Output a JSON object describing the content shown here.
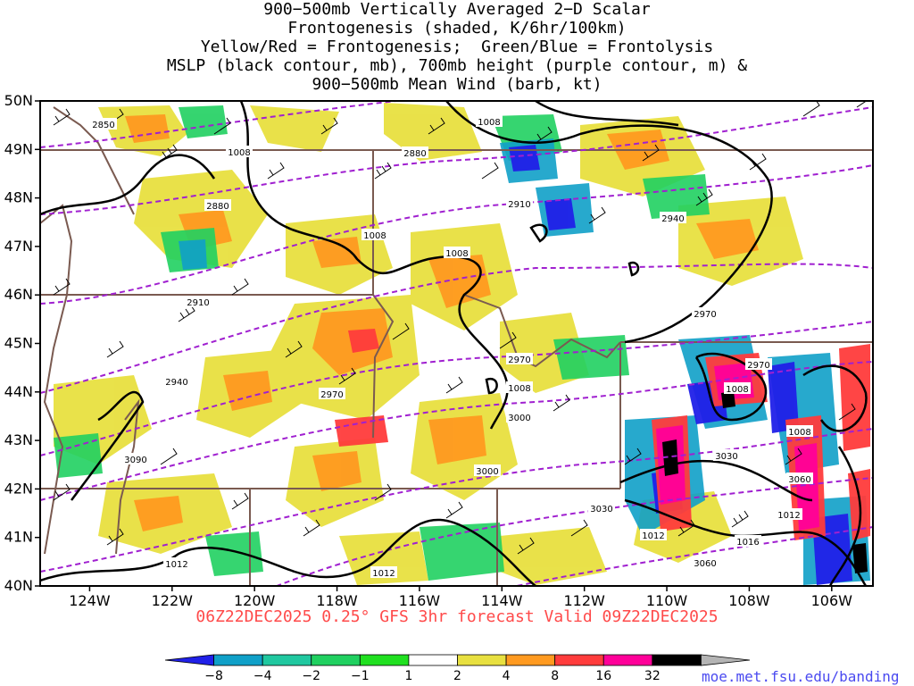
{
  "title": {
    "lines": [
      "900−500mb Vertically Averaged 2−D Scalar",
      "Frontogenesis (shaded, K/6hr/100km)",
      "Yellow/Red = Frontogenesis;  Green/Blue = Frontolysis",
      "MSLP (black contour, mb), 700mb height (purple contour, m) &",
      "900−500mb Mean Wind (barb, kt)"
    ]
  },
  "map": {
    "lon_ticks": [
      "124W",
      "122W",
      "120W",
      "118W",
      "116W",
      "114W",
      "112W",
      "110W",
      "108W",
      "106W"
    ],
    "lat_ticks": [
      "50N",
      "49N",
      "48N",
      "47N",
      "46N",
      "45N",
      "44N",
      "43N",
      "42N",
      "41N",
      "40N"
    ],
    "lon_range": [
      -125.2,
      -105.0
    ],
    "lat_range": [
      40,
      50
    ],
    "contour_labels": {
      "mslp": [
        "1008",
        "1008",
        "1008",
        "1008",
        "1008",
        "1008",
        "1008",
        "1012",
        "1012",
        "1012",
        "1012",
        "1016"
      ],
      "height700": [
        "2850",
        "2880",
        "2880",
        "2910",
        "2910",
        "2940",
        "2940",
        "2970",
        "2970",
        "2970",
        "2970",
        "3000",
        "3000",
        "3030",
        "3030",
        "3060",
        "3060",
        "3090"
      ]
    }
  },
  "colorbar": {
    "labels": [
      "−8",
      "−4",
      "−2",
      "−1",
      "1",
      "2",
      "4",
      "8",
      "16",
      "32"
    ],
    "colors": [
      "#2020e8",
      "#10a0c8",
      "#20c8a0",
      "#20d060",
      "#20e020",
      "#ffffff",
      "#e8e040",
      "#ff9a20",
      "#ff3c3c",
      "#ff0099",
      "#000000",
      "#b4b4b4"
    ]
  },
  "colors": {
    "mslp_contour": "#000000",
    "height_contour": "#a020d0",
    "border": "#7a5a50",
    "valid_text": "#ff4a4a",
    "credit_text": "#4a4af0"
  },
  "footer": {
    "valid": "06Z22DEC2025 0.25° GFS 3hr forecast Valid 09Z22DEC2025",
    "credit": "moe.met.fsu.edu/banding"
  }
}
